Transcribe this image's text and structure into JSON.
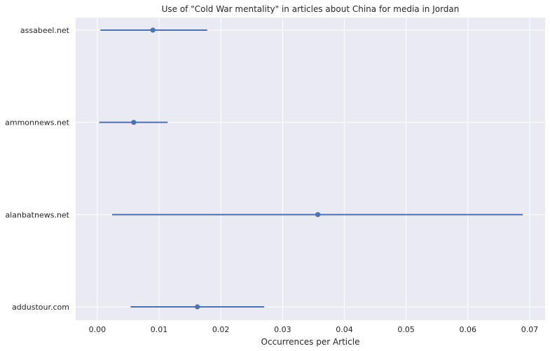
{
  "chart_data": {
    "type": "scatter",
    "title": "Use of \"Cold War mentality\" in articles about China for media in Jordan",
    "xlabel": "Occurrences per Article",
    "ylabel": "",
    "xlim": [
      -0.0035,
      0.0725
    ],
    "xticks": [
      0.0,
      0.01,
      0.02,
      0.03,
      0.04,
      0.05,
      0.06,
      0.07
    ],
    "xtick_labels": [
      "0.00",
      "0.01",
      "0.02",
      "0.03",
      "0.04",
      "0.05",
      "0.06",
      "0.07"
    ],
    "grid": true,
    "colors": {
      "background": "#eaeaf2",
      "grid": "#ffffff",
      "marker": "#4c72b0"
    },
    "points": [
      {
        "label": "assabeel.net",
        "value": 0.009,
        "low": 0.0005,
        "high": 0.0178
      },
      {
        "label": "ammonnews.net",
        "value": 0.0059,
        "low": 0.0003,
        "high": 0.0114
      },
      {
        "label": "alanbatnews.net",
        "value": 0.0357,
        "low": 0.0024,
        "high": 0.0689
      },
      {
        "label": "addustour.com",
        "value": 0.0162,
        "low": 0.0054,
        "high": 0.027
      }
    ]
  }
}
